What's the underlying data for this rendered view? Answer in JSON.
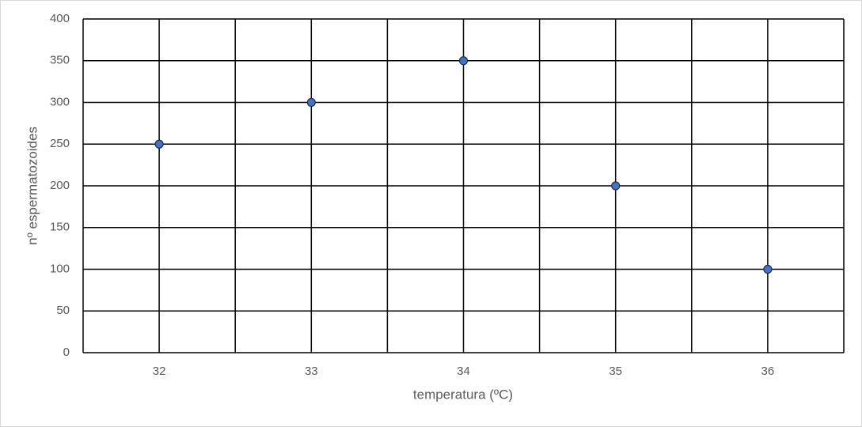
{
  "chart_data": {
    "type": "scatter",
    "x_label": "temperatura (ºC)",
    "y_label": "nº espermatozoides",
    "x": [
      32,
      33,
      34,
      35,
      36
    ],
    "values": [
      250,
      300,
      350,
      200,
      100
    ],
    "color": "#4472c4",
    "xlim": [
      31.5,
      36.5
    ],
    "xticks": [
      32,
      33,
      34,
      35,
      36
    ],
    "x_minor_grid": [
      31.5,
      32.5,
      33.5,
      34.5,
      35.5,
      36.5
    ],
    "ylim": [
      0,
      400
    ],
    "yticks": [
      0,
      50,
      100,
      150,
      200,
      250,
      300,
      350,
      400
    ],
    "grid": true
  }
}
